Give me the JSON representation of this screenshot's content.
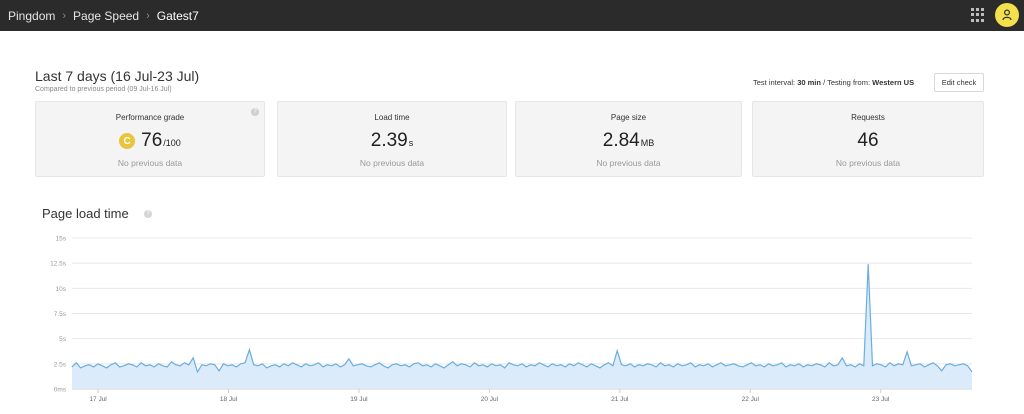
{
  "breadcrumb": [
    "Pingdom",
    "Page Speed",
    "Gatest7"
  ],
  "header": {
    "title": "Last 7 days (16 Jul-23 Jul)",
    "subtitle": "Compared to previous period (09 Jul-16 Jul)",
    "test_interval_label": "Test interval:",
    "test_interval_value": "30 min",
    "testing_from_label": "/ Testing from:",
    "testing_from_value": "Western US",
    "edit_button": "Edit check"
  },
  "cards": [
    {
      "label": "Performance grade",
      "grade": "C",
      "value": "76",
      "unit": "/100",
      "note": "No previous data"
    },
    {
      "label": "Load time",
      "value": "2.39",
      "unit": "s",
      "note": "No previous data"
    },
    {
      "label": "Page size",
      "value": "2.84",
      "unit": "MB",
      "note": "No previous data"
    },
    {
      "label": "Requests",
      "value": "46",
      "unit": "",
      "note": "No previous data"
    }
  ],
  "chart_section": {
    "title": "Page load time"
  },
  "colors": {
    "line": "#6aaee0",
    "fill": "#d8e9f8",
    "grade": "#e8c53d",
    "topbar": "#2b2b2b"
  },
  "chart_data": {
    "type": "area",
    "title": "",
    "ylabel": "",
    "ylim": [
      0,
      15
    ],
    "yticks": [
      0,
      2.5,
      5,
      7.5,
      10,
      12.5,
      15
    ],
    "yticklabels": [
      "0ms",
      "2.5s",
      "5s",
      "7.5s",
      "10s",
      "12.5s",
      "15s"
    ],
    "xticklabels": [
      "17 Jul",
      "18 Jul",
      "19 Jul",
      "20 Jul",
      "21 Jul",
      "22 Jul",
      "23 Jul"
    ],
    "xtick_days": [
      1,
      2,
      3,
      4,
      5,
      6,
      7
    ],
    "x_range_days": [
      0.8,
      7.7
    ],
    "grid": true,
    "series": [
      {
        "values": [
          2.2,
          2.6,
          2.1,
          2.3,
          2.4,
          2.2,
          2.5,
          2.3,
          2.1,
          2.4,
          2.6,
          2.2,
          2.3,
          2.5,
          2.4,
          2.2,
          2.6,
          2.3,
          2.4,
          2.2,
          2.5,
          2.3,
          2.2,
          2.7,
          2.4,
          2.3,
          2.6,
          2.4,
          3.1,
          1.7,
          2.4,
          2.3,
          2.5,
          2.4,
          1.8,
          2.5,
          2.3,
          2.4,
          2.2,
          2.5,
          2.6,
          3.9,
          2.4,
          2.3,
          2.5,
          2.1,
          2.3,
          2.4,
          2.2,
          2.5,
          2.3,
          2.6,
          2.4,
          2.2,
          2.5,
          2.3,
          2.4,
          2.6,
          2.2,
          2.4,
          2.3,
          2.5,
          2.2,
          2.4,
          3.0,
          2.3,
          2.4,
          2.5,
          2.3,
          2.2,
          2.4,
          2.6,
          2.3,
          2.1,
          2.4,
          2.5,
          2.3,
          2.4,
          2.2,
          2.5,
          2.6,
          2.3,
          2.4,
          2.2,
          2.5,
          2.3,
          2.1,
          2.4,
          2.7,
          2.3,
          2.5,
          2.4,
          2.2,
          2.6,
          2.3,
          2.4,
          2.2,
          2.5,
          2.3,
          2.4,
          2.1,
          2.6,
          2.4,
          2.3,
          2.5,
          2.2,
          2.4,
          2.3,
          2.6,
          2.4,
          2.2,
          2.5,
          2.3,
          2.4,
          2.2,
          2.5,
          2.3,
          2.6,
          2.4,
          2.2,
          2.5,
          2.3,
          2.1,
          2.4,
          2.6,
          2.3,
          3.8,
          2.4,
          2.3,
          2.5,
          2.2,
          2.4,
          2.3,
          2.5,
          2.4,
          2.2,
          2.6,
          2.3,
          2.4,
          2.2,
          2.5,
          2.3,
          2.4,
          2.6,
          2.2,
          2.4,
          2.3,
          2.5,
          2.2,
          2.4,
          2.6,
          2.3,
          2.4,
          2.5,
          2.3,
          2.2,
          2.4,
          2.6,
          2.3,
          2.4,
          2.2,
          2.5,
          2.3,
          2.4,
          2.6,
          2.2,
          2.4,
          2.3,
          2.5,
          2.2,
          2.4,
          2.3,
          2.5,
          2.4,
          2.2,
          2.6,
          2.3,
          2.4,
          3.1,
          2.3,
          2.4,
          2.2,
          2.5,
          2.3,
          12.4,
          2.3,
          2.5,
          2.4,
          2.2,
          2.6,
          2.3,
          2.5,
          2.4,
          3.7,
          2.3,
          2.4,
          2.5,
          2.2,
          2.4,
          2.6,
          2.3,
          1.8,
          2.4,
          2.5,
          2.3,
          2.4,
          2.5,
          2.3,
          1.7
        ]
      }
    ]
  }
}
